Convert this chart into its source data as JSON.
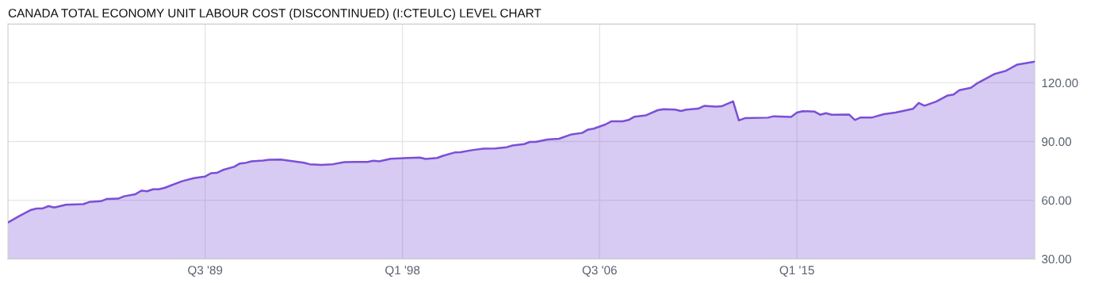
{
  "chart_data": {
    "type": "area",
    "title": "CANADA TOTAL ECONOMY UNIT LABOUR COST (DISCONTINUED) (I:CTEULC) LEVEL CHART",
    "x": [
      "1981-01",
      "1981-07",
      "1982-01",
      "1982-04",
      "1982-07",
      "1982-10",
      "1983-01",
      "1983-07",
      "1984-04",
      "1984-07",
      "1985-01",
      "1985-04",
      "1985-10",
      "1986-01",
      "1986-07",
      "1986-10",
      "1987-01",
      "1987-04",
      "1987-07",
      "1987-10",
      "1988-07",
      "1989-01",
      "1989-07",
      "1989-10",
      "1990-01",
      "1990-04",
      "1990-10",
      "1991-01",
      "1991-04",
      "1991-07",
      "1992-01",
      "1992-04",
      "1992-10",
      "1993-01",
      "1993-10",
      "1994-01",
      "1994-07",
      "1995-01",
      "1995-07",
      "1996-01",
      "1996-07",
      "1996-10",
      "1997-01",
      "1997-07",
      "1998-04",
      "1998-10",
      "1999-01",
      "1999-07",
      "1999-10",
      "2000-04",
      "2000-07",
      "2001-01",
      "2001-07",
      "2002-01",
      "2002-07",
      "2002-10",
      "2003-04",
      "2003-07",
      "2003-10",
      "2004-04",
      "2004-10",
      "2005-04",
      "2005-10",
      "2006-01",
      "2006-04",
      "2006-10",
      "2007-01",
      "2007-07",
      "2007-10",
      "2008-01",
      "2008-07",
      "2009-01",
      "2009-04",
      "2009-10",
      "2010-01",
      "2010-04",
      "2010-10",
      "2011-01",
      "2011-07",
      "2011-10",
      "2012-04",
      "2012-07",
      "2012-10",
      "2013-10",
      "2014-01",
      "2014-10",
      "2015-01",
      "2015-04",
      "2015-10",
      "2016-01",
      "2016-04",
      "2016-07",
      "2017-04",
      "2017-07",
      "2017-10",
      "2018-04",
      "2018-10",
      "2019-04",
      "2020-01",
      "2020-04",
      "2020-07",
      "2021-01",
      "2021-07",
      "2021-10",
      "2022-01",
      "2022-07",
      "2022-10",
      "2023-07",
      "2024-01",
      "2024-07",
      "2025-04"
    ],
    "series": [
      {
        "color": "#7b4fd6",
        "values": [
          48.6,
          52.0,
          55.1,
          55.8,
          55.8,
          57.0,
          56.3,
          57.7,
          58.0,
          59.1,
          59.5,
          60.6,
          60.8,
          62.0,
          63.1,
          64.9,
          64.6,
          65.6,
          65.6,
          66.3,
          69.7,
          71.3,
          72.1,
          73.8,
          74.0,
          75.4,
          77.1,
          78.8,
          79.1,
          79.9,
          80.3,
          80.7,
          80.8,
          80.4,
          79.2,
          78.4,
          78.1,
          78.4,
          79.5,
          79.6,
          79.6,
          80.2,
          79.9,
          81.2,
          81.6,
          81.8,
          81.1,
          81.6,
          82.7,
          84.4,
          84.5,
          85.6,
          86.4,
          86.5,
          87.1,
          88.0,
          88.7,
          89.8,
          89.8,
          91.0,
          91.4,
          93.5,
          94.4,
          96.1,
          96.6,
          98.7,
          100.3,
          100.3,
          101.0,
          102.7,
          103.4,
          106.0,
          106.5,
          106.3,
          105.6,
          106.3,
          106.8,
          108.2,
          107.8,
          108.0,
          110.5,
          100.8,
          101.9,
          102.2,
          102.9,
          102.6,
          104.8,
          105.5,
          105.3,
          103.7,
          104.5,
          103.7,
          103.8,
          101.0,
          102.3,
          102.3,
          104.0,
          104.8,
          106.7,
          109.7,
          108.3,
          110.4,
          113.5,
          114.0,
          116.2,
          117.4,
          119.6,
          124.4,
          126.1,
          129.3,
          130.8
        ]
      }
    ],
    "xlim": [
      "1981-01",
      "2025-04"
    ],
    "xticks": [
      {
        "value": "1989-07",
        "label": "Q3 '89"
      },
      {
        "value": "1998-01",
        "label": "Q1 '98"
      },
      {
        "value": "2006-07",
        "label": "Q3 '06"
      },
      {
        "value": "2015-01",
        "label": "Q1 '15"
      }
    ],
    "ylim": [
      30,
      150
    ],
    "yticks": [
      {
        "value": 30,
        "label": "30.00"
      },
      {
        "value": 60,
        "label": "60.00"
      },
      {
        "value": 90,
        "label": "90.00"
      },
      {
        "value": 120,
        "label": "120.00"
      }
    ],
    "grid": true
  }
}
